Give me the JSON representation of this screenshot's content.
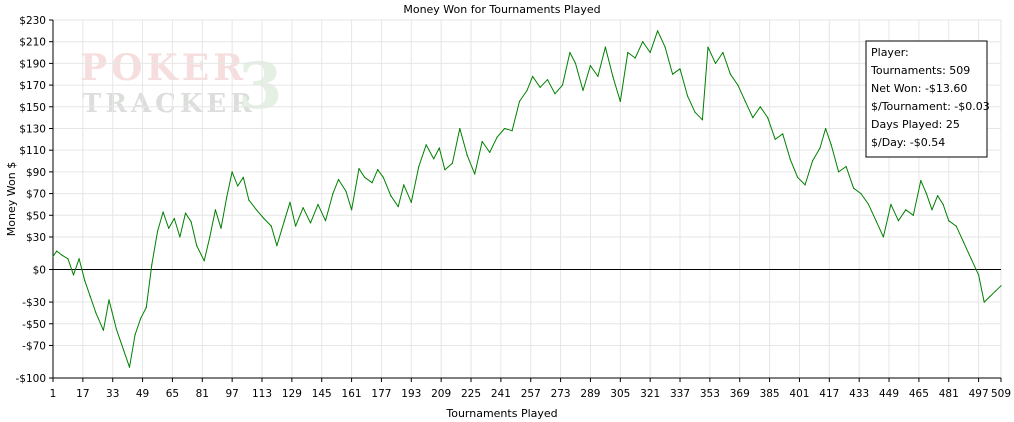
{
  "chart_data": {
    "type": "line",
    "title": "Money Won for Tournaments Played",
    "xlabel": "Tournaments Played",
    "ylabel": "Money Won $",
    "xlim": [
      1,
      509
    ],
    "ylim": [
      -100,
      230
    ],
    "x_ticks": [
      1,
      17,
      33,
      49,
      65,
      81,
      97,
      113,
      129,
      145,
      161,
      177,
      193,
      209,
      225,
      241,
      257,
      273,
      289,
      305,
      321,
      337,
      353,
      369,
      385,
      401,
      417,
      433,
      449,
      465,
      481,
      497,
      509
    ],
    "y_ticks": [
      {
        "value": 230,
        "label": "$230"
      },
      {
        "value": 210,
        "label": "$210"
      },
      {
        "value": 190,
        "label": "$190"
      },
      {
        "value": 170,
        "label": "$170"
      },
      {
        "value": 150,
        "label": "$150"
      },
      {
        "value": 130,
        "label": "$130"
      },
      {
        "value": 110,
        "label": "$110"
      },
      {
        "value": 90,
        "label": "$90"
      },
      {
        "value": 70,
        "label": "$70"
      },
      {
        "value": 50,
        "label": "$50"
      },
      {
        "value": 30,
        "label": "$30"
      },
      {
        "value": 0,
        "label": "$0"
      },
      {
        "value": -30,
        "label": "-$30"
      },
      {
        "value": -50,
        "label": "-$50"
      },
      {
        "value": -70,
        "label": "-$70"
      },
      {
        "value": -100,
        "label": "-$100"
      }
    ],
    "grid": true,
    "zero_line": true,
    "line_color": "#008000",
    "series": [
      {
        "points": [
          [
            1,
            12
          ],
          [
            3,
            17
          ],
          [
            6,
            13
          ],
          [
            9,
            10
          ],
          [
            12,
            -5
          ],
          [
            15,
            10
          ],
          [
            18,
            -10
          ],
          [
            21,
            -25
          ],
          [
            24,
            -40
          ],
          [
            28,
            -56
          ],
          [
            31,
            -28
          ],
          [
            35,
            -55
          ],
          [
            39,
            -75
          ],
          [
            42,
            -90
          ],
          [
            45,
            -60
          ],
          [
            48,
            -45
          ],
          [
            51,
            -35
          ],
          [
            54,
            5
          ],
          [
            57,
            35
          ],
          [
            60,
            53
          ],
          [
            63,
            38
          ],
          [
            66,
            47
          ],
          [
            69,
            30
          ],
          [
            72,
            52
          ],
          [
            75,
            44
          ],
          [
            78,
            22
          ],
          [
            82,
            8
          ],
          [
            85,
            30
          ],
          [
            88,
            55
          ],
          [
            91,
            38
          ],
          [
            94,
            66
          ],
          [
            97,
            90
          ],
          [
            100,
            77
          ],
          [
            103,
            85
          ],
          [
            106,
            64
          ],
          [
            110,
            55
          ],
          [
            114,
            47
          ],
          [
            118,
            40
          ],
          [
            121,
            22
          ],
          [
            125,
            45
          ],
          [
            128,
            62
          ],
          [
            131,
            40
          ],
          [
            135,
            57
          ],
          [
            139,
            43
          ],
          [
            143,
            60
          ],
          [
            147,
            45
          ],
          [
            151,
            70
          ],
          [
            154,
            83
          ],
          [
            158,
            72
          ],
          [
            161,
            55
          ],
          [
            165,
            93
          ],
          [
            168,
            85
          ],
          [
            172,
            80
          ],
          [
            175,
            92
          ],
          [
            178,
            85
          ],
          [
            182,
            68
          ],
          [
            186,
            58
          ],
          [
            189,
            78
          ],
          [
            193,
            62
          ],
          [
            197,
            95
          ],
          [
            201,
            115
          ],
          [
            205,
            102
          ],
          [
            208,
            112
          ],
          [
            211,
            92
          ],
          [
            215,
            98
          ],
          [
            219,
            130
          ],
          [
            223,
            105
          ],
          [
            227,
            88
          ],
          [
            231,
            118
          ],
          [
            235,
            108
          ],
          [
            239,
            122
          ],
          [
            243,
            130
          ],
          [
            247,
            128
          ],
          [
            251,
            155
          ],
          [
            255,
            165
          ],
          [
            258,
            178
          ],
          [
            262,
            168
          ],
          [
            266,
            175
          ],
          [
            270,
            162
          ],
          [
            274,
            170
          ],
          [
            278,
            200
          ],
          [
            281,
            190
          ],
          [
            285,
            165
          ],
          [
            289,
            188
          ],
          [
            293,
            178
          ],
          [
            297,
            205
          ],
          [
            301,
            178
          ],
          [
            305,
            155
          ],
          [
            309,
            200
          ],
          [
            313,
            195
          ],
          [
            317,
            210
          ],
          [
            321,
            200
          ],
          [
            325,
            220
          ],
          [
            329,
            205
          ],
          [
            333,
            180
          ],
          [
            337,
            185
          ],
          [
            341,
            160
          ],
          [
            345,
            145
          ],
          [
            349,
            138
          ],
          [
            352,
            205
          ],
          [
            356,
            190
          ],
          [
            360,
            200
          ],
          [
            364,
            180
          ],
          [
            368,
            170
          ],
          [
            372,
            155
          ],
          [
            376,
            140
          ],
          [
            380,
            150
          ],
          [
            384,
            140
          ],
          [
            388,
            120
          ],
          [
            392,
            125
          ],
          [
            396,
            102
          ],
          [
            400,
            85
          ],
          [
            404,
            78
          ],
          [
            408,
            100
          ],
          [
            412,
            112
          ],
          [
            415,
            130
          ],
          [
            418,
            115
          ],
          [
            422,
            90
          ],
          [
            426,
            95
          ],
          [
            430,
            75
          ],
          [
            434,
            70
          ],
          [
            438,
            60
          ],
          [
            442,
            45
          ],
          [
            446,
            30
          ],
          [
            450,
            60
          ],
          [
            454,
            45
          ],
          [
            458,
            55
          ],
          [
            462,
            50
          ],
          [
            466,
            82
          ],
          [
            469,
            70
          ],
          [
            472,
            55
          ],
          [
            475,
            68
          ],
          [
            478,
            60
          ],
          [
            481,
            45
          ],
          [
            485,
            40
          ],
          [
            489,
            25
          ],
          [
            493,
            10
          ],
          [
            497,
            -5
          ],
          [
            500,
            -30
          ],
          [
            503,
            -25
          ],
          [
            506,
            -20
          ],
          [
            509,
            -15
          ]
        ]
      }
    ]
  },
  "stats_box": {
    "heading": "Player:",
    "rows": [
      "Tournaments: 509",
      "Net Won: -$13.60",
      "$/Tournament: -$0.03",
      "Days Played: 25",
      "$/Day: -$0.54"
    ]
  },
  "watermark": {
    "line1": "POKER",
    "line2": "TRACKER",
    "numeral": "3"
  }
}
